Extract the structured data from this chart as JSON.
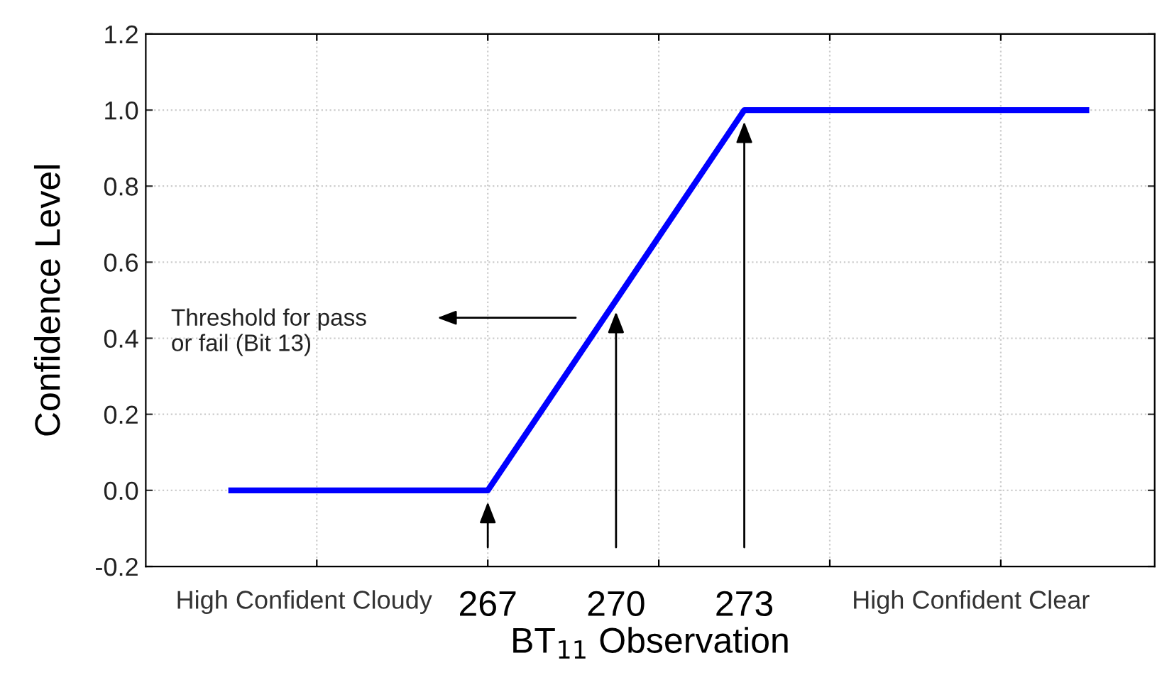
{
  "chart_data": {
    "type": "line",
    "xlabel": "BT$_{11}$ Observation",
    "ylabel": "Confidence Level",
    "x": [
      261,
      267,
      273,
      281
    ],
    "series": [
      {
        "color": "#0000ff",
        "values": [
          0,
          0,
          1,
          1
        ]
      }
    ],
    "xlim": [
      259,
      282.6
    ],
    "ylim": [
      -0.2,
      1.2
    ],
    "xticks": [
      {
        "value": 262.7,
        "label": "High Confident Cloudy"
      },
      {
        "value": 263,
        "label": null
      },
      267,
      270,
      {
        "value": 271,
        "label": null
      },
      273,
      {
        "value": 275,
        "label": null
      },
      {
        "value": 278.3,
        "label": "High Confident Clear"
      },
      {
        "value": 279,
        "label": null
      }
    ],
    "yticks": [
      {
        "value": -0.2,
        "label": "-0.2"
      },
      {
        "value": 0,
        "label": "0.0"
      },
      {
        "value": 0.2,
        "label": "0.2"
      },
      {
        "value": 0.4,
        "label": "0.4"
      },
      {
        "value": 0.6,
        "label": "0.6"
      },
      {
        "value": 0.8,
        "label": "0.8"
      },
      {
        "value": 1.0,
        "label": "1.0"
      },
      {
        "value": 1.2,
        "label": "1.2"
      }
    ],
    "grid": true,
    "line_style": "solid",
    "marker": "none",
    "annotations": [
      "Threshold for pass\nor fail (Bit 13)"
    ]
  }
}
